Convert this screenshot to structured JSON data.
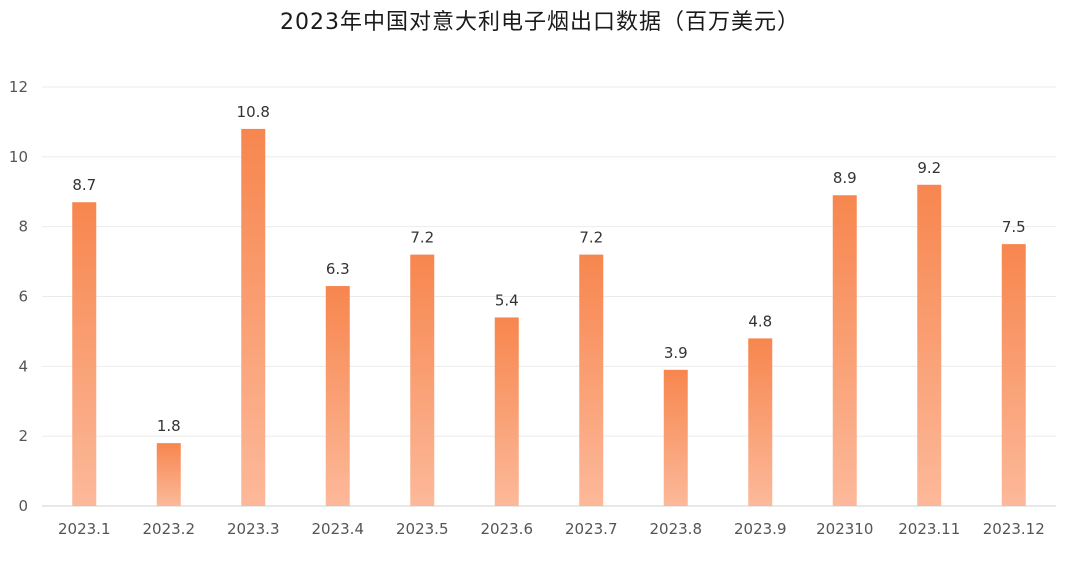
{
  "chart_data": {
    "type": "bar",
    "title": "2023年中国对意大利电子烟出口数据（百万美元）",
    "xlabel": "",
    "ylabel": "",
    "categories": [
      "2023.1",
      "2023.2",
      "2023.3",
      "2023.4",
      "2023.5",
      "2023.6",
      "2023.7",
      "2023.8",
      "2023.9",
      "202310",
      "2023.11",
      "2023.12"
    ],
    "values": [
      8.7,
      1.8,
      10.8,
      6.3,
      7.2,
      5.4,
      7.2,
      3.9,
      4.8,
      8.9,
      9.2,
      7.5
    ],
    "data_labels": [
      "8.7",
      "1.8",
      "10.8",
      "6.3",
      "7.2",
      "5.4",
      "7.2",
      "3.9",
      "4.8",
      "8.9",
      "9.2",
      "7.5"
    ],
    "ylim": [
      0,
      12
    ],
    "yticks": [
      0,
      2,
      4,
      6,
      8,
      10,
      12
    ],
    "grid": true,
    "legend": "none",
    "colors": {
      "bar_top": "#F7864E",
      "bar_bottom": "#FCB99A",
      "grid": "#EBEBEB",
      "axis": "#D0D0D0"
    }
  }
}
